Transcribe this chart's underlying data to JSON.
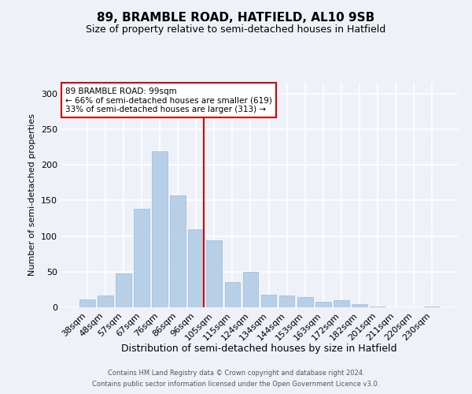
{
  "title1": "89, BRAMBLE ROAD, HATFIELD, AL10 9SB",
  "title2": "Size of property relative to semi-detached houses in Hatfield",
  "xlabel": "Distribution of semi-detached houses by size in Hatfield",
  "ylabel": "Number of semi-detached properties",
  "categories": [
    "38sqm",
    "48sqm",
    "57sqm",
    "67sqm",
    "76sqm",
    "86sqm",
    "96sqm",
    "105sqm",
    "115sqm",
    "124sqm",
    "134sqm",
    "144sqm",
    "153sqm",
    "163sqm",
    "172sqm",
    "182sqm",
    "201sqm",
    "211sqm",
    "220sqm",
    "230sqm"
  ],
  "values": [
    11,
    17,
    47,
    138,
    219,
    157,
    109,
    94,
    35,
    50,
    18,
    17,
    14,
    8,
    10,
    4,
    1,
    0,
    0,
    1
  ],
  "bar_color": "#b8cfe8",
  "bar_edge_color": "#9ab8d8",
  "vline_color": "#cc0000",
  "vline_index": 6,
  "annotation_text": "89 BRAMBLE ROAD: 99sqm\n← 66% of semi-detached houses are smaller (619)\n33% of semi-detached houses are larger (313) →",
  "annotation_box_facecolor": "#ffffff",
  "annotation_box_edgecolor": "#cc0000",
  "footer1": "Contains HM Land Registry data © Crown copyright and database right 2024.",
  "footer2": "Contains public sector information licensed under the Open Government Licence v3.0.",
  "ylim": [
    0,
    315
  ],
  "yticks": [
    0,
    50,
    100,
    150,
    200,
    250,
    300
  ],
  "bg_color": "#eef2f8",
  "grid_color": "#ffffff",
  "title1_fontsize": 11,
  "title2_fontsize": 9,
  "ylabel_fontsize": 8,
  "xlabel_fontsize": 9,
  "tick_fontsize": 8,
  "annotation_fontsize": 7.5,
  "footer_fontsize": 6.0
}
